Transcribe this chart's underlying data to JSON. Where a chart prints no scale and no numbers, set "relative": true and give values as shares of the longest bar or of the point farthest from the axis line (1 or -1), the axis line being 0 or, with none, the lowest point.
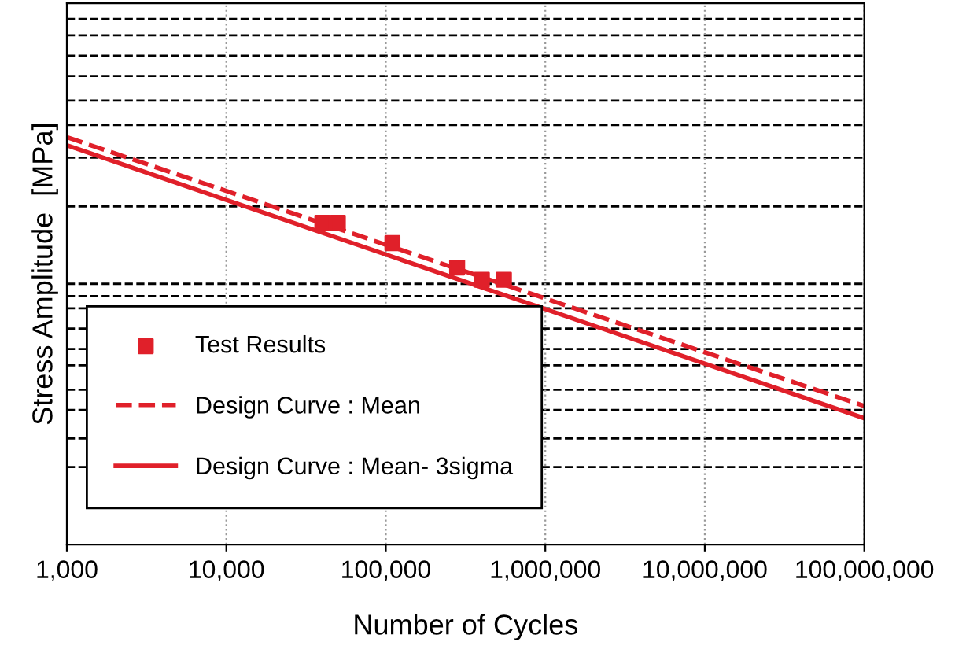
{
  "chart_data": {
    "type": "line",
    "relative": true,
    "xlabel": "Number of Cycles",
    "ylabel": "Stress Amplitude  [MPa]",
    "log": "x",
    "xlim": [
      1000,
      100000000
    ],
    "xticks": [
      {
        "value": 1000,
        "label": "1,000"
      },
      {
        "value": 10000,
        "label": "10,000"
      },
      {
        "value": 100000,
        "label": "100,000"
      },
      {
        "value": 1000000,
        "label": "1,000,000"
      },
      {
        "value": 10000000,
        "label": "10,000,000"
      },
      {
        "value": 100000000,
        "label": "100,000,000"
      }
    ],
    "grid": "x",
    "legend": "bottom left",
    "series": [
      {
        "name": "Test Results",
        "type": "scatter",
        "marker": "square",
        "color": "#e0202a",
        "x": [
          40000,
          50000,
          110000,
          280000,
          400000,
          550000
        ],
        "values": [
          0.79,
          0.79,
          0.74,
          0.68,
          0.65,
          0.65
        ]
      },
      {
        "name": "Design Curve : Mean",
        "line_style": "dashed",
        "marker": "none",
        "color": "#e0202a",
        "x": [
          1000,
          100000000
        ],
        "values": [
          1.0,
          0.34
        ]
      },
      {
        "name": "Design Curve : Mean- 3sigma",
        "line_style": "solid",
        "marker": "none",
        "color": "#e0202a",
        "x": [
          1000,
          100000000
        ],
        "values": [
          0.98,
          0.31
        ]
      }
    ],
    "ref_lines": [
      {
        "axis": "y",
        "value": 1.29,
        "line_style": "dashed",
        "color": "#000000"
      },
      {
        "axis": "y",
        "value": 1.25,
        "line_style": "dashed",
        "color": "#000000"
      },
      {
        "axis": "y",
        "value": 1.2,
        "line_style": "dashed",
        "color": "#000000"
      },
      {
        "axis": "y",
        "value": 1.15,
        "line_style": "dashed",
        "color": "#000000"
      },
      {
        "axis": "y",
        "value": 1.09,
        "line_style": "dashed",
        "color": "#000000"
      },
      {
        "axis": "y",
        "value": 1.03,
        "line_style": "dashed",
        "color": "#000000"
      },
      {
        "axis": "y",
        "value": 0.95,
        "line_style": "dashed",
        "color": "#000000"
      },
      {
        "axis": "y",
        "value": 0.83,
        "line_style": "dashed",
        "color": "#000000"
      },
      {
        "axis": "y",
        "value": 0.64,
        "line_style": "dashed",
        "color": "#000000"
      },
      {
        "axis": "y",
        "value": 0.61,
        "line_style": "dashed",
        "color": "#000000"
      },
      {
        "axis": "y",
        "value": 0.58,
        "line_style": "dashed",
        "color": "#000000"
      },
      {
        "axis": "y",
        "value": 0.53,
        "line_style": "dashed",
        "color": "#000000"
      },
      {
        "axis": "y",
        "value": 0.48,
        "line_style": "dashed",
        "color": "#000000"
      },
      {
        "axis": "y",
        "value": 0.44,
        "line_style": "dashed",
        "color": "#000000"
      },
      {
        "axis": "y",
        "value": 0.38,
        "line_style": "dashed",
        "color": "#000000"
      },
      {
        "axis": "y",
        "value": 0.33,
        "line_style": "dashed",
        "color": "#000000"
      },
      {
        "axis": "y",
        "value": 0.26,
        "line_style": "dashed",
        "color": "#000000"
      },
      {
        "axis": "y",
        "value": 0.19,
        "line_style": "dashed",
        "color": "#000000"
      }
    ]
  }
}
